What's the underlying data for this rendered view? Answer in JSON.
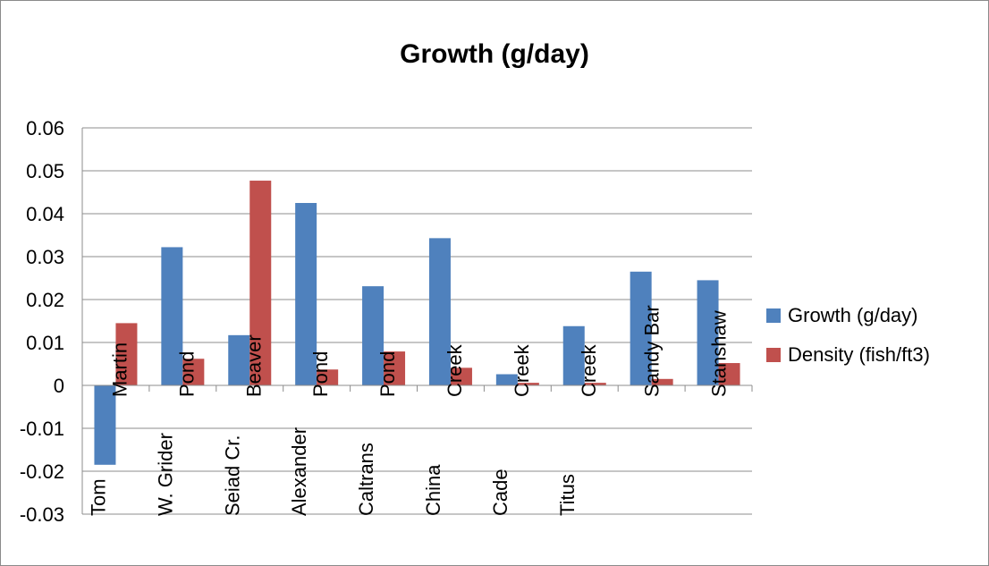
{
  "chart_data": {
    "type": "bar",
    "title": "Growth (g/day)",
    "xlabel": "",
    "ylabel": "",
    "ylim": [
      -0.03,
      0.06
    ],
    "yticks": [
      0.06,
      0.05,
      0.04,
      0.03,
      0.02,
      0.01,
      0,
      -0.01,
      -0.02,
      -0.03
    ],
    "ytick_labels": [
      "0.06",
      "0.05",
      "0.04",
      "0.03",
      "0.02",
      "0.01",
      "0",
      "-0.01",
      "-0.02",
      "-0.03"
    ],
    "categories": [
      [
        "Tom",
        "Martin"
      ],
      [
        "W. Grider",
        "Pond"
      ],
      [
        "Seiad Cr.",
        "Beaver"
      ],
      [
        "Alexander",
        "Pond"
      ],
      [
        "Caltrans",
        "Pond"
      ],
      [
        "China",
        "Creek"
      ],
      [
        "Cade",
        "Creek"
      ],
      [
        "Titus",
        "Creek"
      ],
      [
        "Sandy Bar"
      ],
      [
        "Stanshaw"
      ]
    ],
    "series": [
      {
        "name": "Growth (g/day)",
        "color": "#4F81BD",
        "values": [
          -0.0185,
          0.0322,
          0.0117,
          0.0425,
          0.0231,
          0.0343,
          0.0026,
          0.0138,
          0.0265,
          0.0245
        ]
      },
      {
        "name": "Density (fish/ft3)",
        "color": "#C0504D",
        "values": [
          0.0145,
          0.0062,
          0.0477,
          0.0037,
          0.0079,
          0.0041,
          0.0006,
          0.0006,
          0.0015,
          0.0052
        ]
      }
    ],
    "grid": true,
    "legend_position": "right"
  }
}
